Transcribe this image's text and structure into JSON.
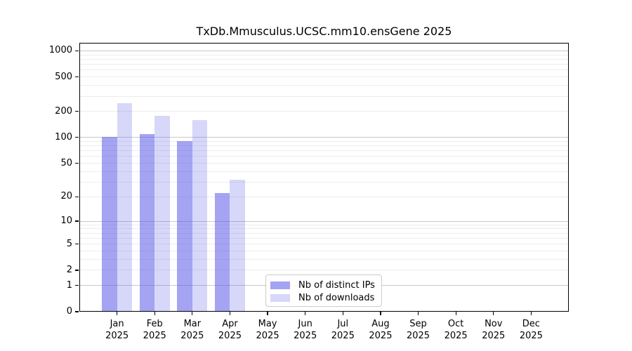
{
  "chart_data": {
    "type": "bar",
    "title": "TxDb.Mmusculus.UCSC.mm10.ensGene 2025",
    "year": "2025",
    "categories": [
      "Jan",
      "Feb",
      "Mar",
      "Apr",
      "May",
      "Jun",
      "Jul",
      "Aug",
      "Sep",
      "Oct",
      "Nov",
      "Dec"
    ],
    "series": [
      {
        "name": "Nb of distinct IPs",
        "values": [
          102,
          110,
          91,
          22,
          0,
          0,
          0,
          0,
          0,
          0,
          0,
          0
        ],
        "color": "rgba(80,80,230,0.52)"
      },
      {
        "name": "Nb of downloads",
        "values": [
          250,
          178,
          160,
          32,
          0,
          0,
          0,
          0,
          0,
          0,
          0,
          0
        ],
        "color": "rgba(80,80,230,0.23)"
      }
    ],
    "yscale": "log10(1+x)",
    "yticks": [
      0,
      1,
      2,
      5,
      10,
      20,
      50,
      100,
      200,
      500,
      1000
    ],
    "ylim": [
      0,
      1238
    ],
    "xlabel": "",
    "ylabel": "",
    "legend_position": "lower-center-left inside plot",
    "grid": "horizontal major (powers of 10, darker) + minor (faint)",
    "colors": {
      "major_grid": "#c9c9c9",
      "minor_grid": "#ededed",
      "axis": "#000000",
      "background": "#ffffff",
      "bar_distinct_ips": "rgba(80,80,230,0.52)",
      "bar_downloads": "rgba(80,80,230,0.23)"
    }
  }
}
